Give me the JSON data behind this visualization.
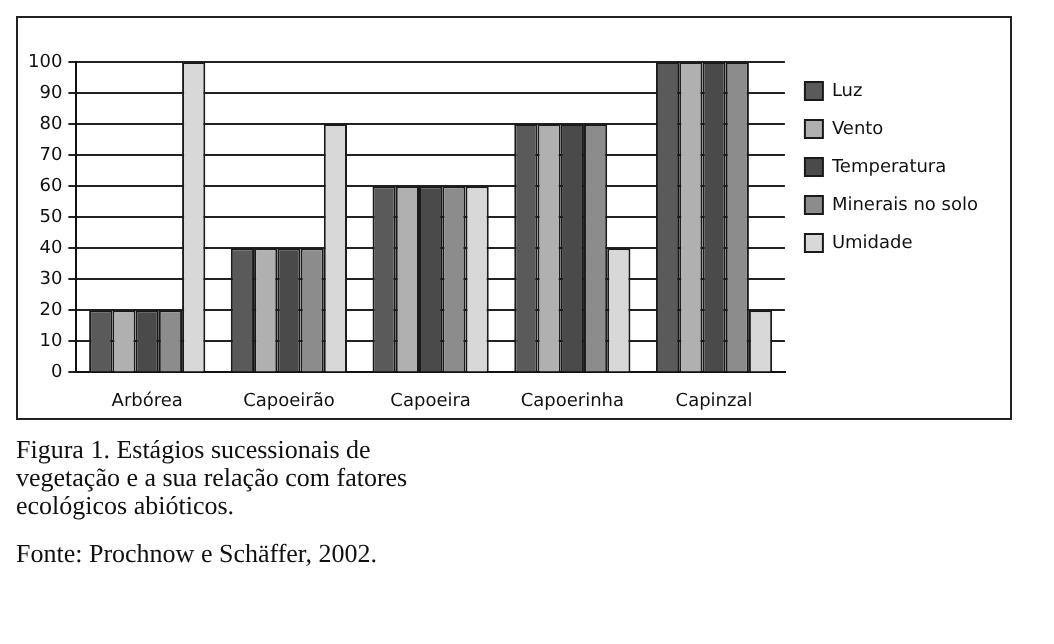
{
  "chart_data": {
    "type": "bar",
    "categories": [
      "Arbórea",
      "Capoeirão",
      "Capoeira",
      "Capoerinha",
      "Capinzal"
    ],
    "series": [
      {
        "name": "Luz",
        "color": "#5a5a5a",
        "values": [
          20,
          40,
          60,
          80,
          100
        ]
      },
      {
        "name": "Vento",
        "color": "#b0b0b0",
        "values": [
          20,
          40,
          60,
          80,
          100
        ]
      },
      {
        "name": "Temperatura",
        "color": "#4a4a4a",
        "values": [
          20,
          40,
          60,
          80,
          100
        ]
      },
      {
        "name": "Minerais no solo",
        "color": "#8c8c8c",
        "values": [
          20,
          40,
          60,
          80,
          100
        ]
      },
      {
        "name": "Umidade",
        "color": "#d8d8d8",
        "values": [
          100,
          80,
          60,
          40,
          20
        ]
      }
    ],
    "ylim": [
      0,
      100
    ],
    "yticks": [
      0,
      10,
      20,
      30,
      40,
      50,
      60,
      70,
      80,
      90,
      100
    ],
    "grid": "y",
    "legend": "right",
    "annotations": [
      "Figura 1. Estágios sucessionais de vegetação e a sua relação com fatores ecológicos abióticos.",
      "Fonte: Prochnow e Schäffer, 2002."
    ]
  }
}
